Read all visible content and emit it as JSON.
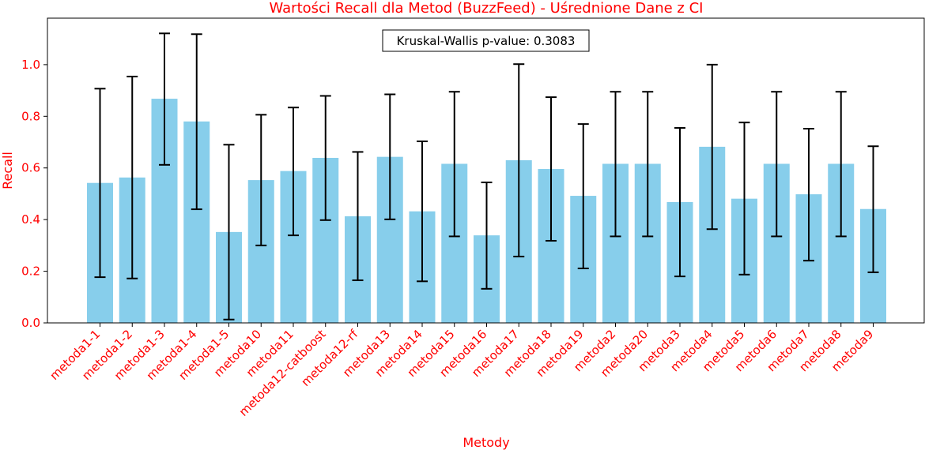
{
  "chart_data": {
    "type": "bar",
    "title": "Wartości Recall dla Metod (BuzzFeed) - Uśrednione Dane z CI",
    "xlabel": "Metody",
    "ylabel": "Recall",
    "ylim": [
      0,
      1.18
    ],
    "yticks": [
      "0.0",
      "0.2",
      "0.4",
      "0.6",
      "0.8",
      "1.0"
    ],
    "grid": false,
    "bar_color": "#87ceeb",
    "text_color": "#ff0000",
    "annotation": "Kruskal-Wallis p-value: 0.3083",
    "categories": [
      "metoda1-1",
      "metoda1-2",
      "metoda1-3",
      "metoda1-4",
      "metoda1-5",
      "metoda10",
      "metoda11",
      "metoda12-catboost",
      "metoda12-rf",
      "metoda13",
      "metoda14",
      "metoda15",
      "metoda16",
      "metoda17",
      "metoda18",
      "metoda19",
      "metoda2",
      "metoda20",
      "metoda3",
      "metoda4",
      "metoda5",
      "metoda6",
      "metoda7",
      "metoda8",
      "metoda9"
    ],
    "values": [
      0.542,
      0.563,
      0.868,
      0.78,
      0.352,
      0.553,
      0.588,
      0.639,
      0.413,
      0.643,
      0.432,
      0.616,
      0.339,
      0.63,
      0.596,
      0.492,
      0.616,
      0.616,
      0.468,
      0.682,
      0.481,
      0.616,
      0.498,
      0.616,
      0.441
    ],
    "ci_low": [
      0.177,
      0.172,
      0.612,
      0.44,
      0.013,
      0.3,
      0.339,
      0.398,
      0.165,
      0.401,
      0.161,
      0.335,
      0.132,
      0.257,
      0.318,
      0.211,
      0.335,
      0.335,
      0.18,
      0.363,
      0.187,
      0.335,
      0.241,
      0.335,
      0.196
    ],
    "ci_high": [
      0.907,
      0.954,
      1.121,
      1.118,
      0.69,
      0.806,
      0.834,
      0.879,
      0.662,
      0.885,
      0.703,
      0.895,
      0.544,
      1.002,
      0.874,
      0.77,
      0.895,
      0.895,
      0.755,
      1.0,
      0.776,
      0.895,
      0.752,
      0.895,
      0.684
    ]
  }
}
